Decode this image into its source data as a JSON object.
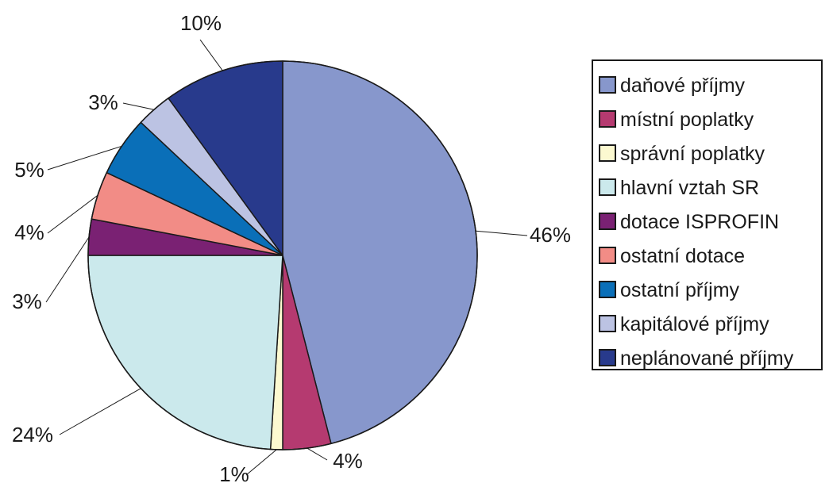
{
  "chart_data": {
    "type": "pie",
    "title": "",
    "legend_position": "right",
    "slices": [
      {
        "name": "daňové příjmy",
        "value": 46,
        "label": "46%",
        "color": "#8797cc"
      },
      {
        "name": "místní poplatky",
        "value": 4,
        "label": "4%",
        "color": "#b53a70"
      },
      {
        "name": "správní poplatky",
        "value": 1,
        "label": "1%",
        "color": "#fcf9d0"
      },
      {
        "name": "hlavní vztah SR",
        "value": 24,
        "label": "24%",
        "color": "#cbe9ec"
      },
      {
        "name": "dotace ISPROFIN",
        "value": 3,
        "label": "3%",
        "color": "#7a2173"
      },
      {
        "name": "ostatní dotace",
        "value": 4,
        "label": "4%",
        "color": "#f28c86"
      },
      {
        "name": "ostatní příjmy",
        "value": 5,
        "label": "5%",
        "color": "#0a6fb8"
      },
      {
        "name": "kapitálové příjmy",
        "value": 3,
        "label": "3%",
        "color": "#bcc3e3"
      },
      {
        "name": "neplánované příjmy",
        "value": 10,
        "label": "10%",
        "color": "#283a8c"
      }
    ]
  }
}
